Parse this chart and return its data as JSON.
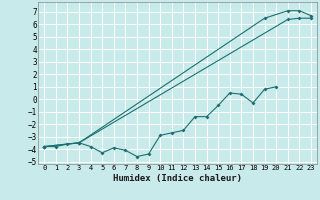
{
  "xlabel": "Humidex (Indice chaleur)",
  "bg_color": "#c8eaea",
  "grid_color": "#b8dede",
  "line_color": "#1a7070",
  "xlim": [
    -0.5,
    23.5
  ],
  "ylim": [
    -5.2,
    7.8
  ],
  "xticks": [
    0,
    1,
    2,
    3,
    4,
    5,
    6,
    7,
    8,
    9,
    10,
    11,
    12,
    13,
    14,
    15,
    16,
    17,
    18,
    19,
    20,
    21,
    22,
    23
  ],
  "yticks": [
    -5,
    -4,
    -3,
    -2,
    -1,
    0,
    1,
    2,
    3,
    4,
    5,
    6,
    7
  ],
  "line1_x": [
    0,
    1,
    2,
    3,
    4,
    5,
    6,
    7,
    8,
    9,
    10,
    11,
    12,
    13,
    14,
    15,
    16,
    17,
    18,
    19,
    20
  ],
  "line1_y": [
    -3.8,
    -3.8,
    -3.6,
    -3.5,
    -3.8,
    -4.3,
    -3.9,
    -4.1,
    -4.6,
    -4.4,
    -2.9,
    -2.7,
    -2.5,
    -1.4,
    -1.4,
    -0.5,
    0.5,
    0.4,
    -0.3,
    0.8,
    1.0
  ],
  "line2_x": [
    0,
    3,
    19,
    21,
    22,
    23
  ],
  "line2_y": [
    -3.8,
    -3.5,
    6.5,
    7.1,
    7.1,
    6.7
  ],
  "line3_x": [
    0,
    3,
    21,
    22,
    23
  ],
  "line3_y": [
    -3.8,
    -3.5,
    6.4,
    6.5,
    6.5
  ]
}
